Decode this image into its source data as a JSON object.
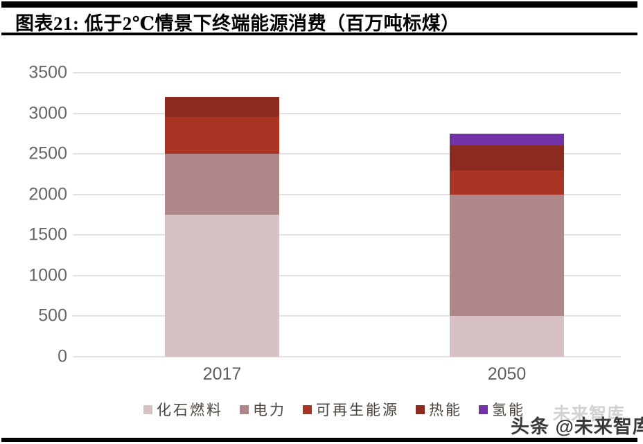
{
  "header": {
    "title": "图表21: 低于2℃情景下终端能源消费（百万吨标煤）"
  },
  "chart_data": {
    "type": "bar",
    "stacked": true,
    "title": "低于2℃情景下终端能源消费（百万吨标煤）",
    "categories": [
      "2017",
      "2050"
    ],
    "series": [
      {
        "name": "化石燃料",
        "color": "#d8c1c3",
        "values": [
          1750,
          500
        ]
      },
      {
        "name": "电力",
        "color": "#ae878a",
        "values": [
          750,
          1500
        ]
      },
      {
        "name": "可再生能源",
        "color": "#a93423",
        "values": [
          450,
          300
        ]
      },
      {
        "name": "热能",
        "color": "#8b2a1e",
        "values": [
          250,
          300
        ]
      },
      {
        "name": "氢能",
        "color": "#7232a6",
        "values": [
          0,
          150
        ]
      }
    ],
    "totals": [
      3200,
      2750
    ],
    "xlabel": "",
    "ylabel": "",
    "ylim": [
      0,
      3500
    ],
    "yticks": [
      0,
      500,
      1000,
      1500,
      2000,
      2500,
      3000,
      3500
    ],
    "grid": true,
    "legend_position": "bottom"
  },
  "watermark": {
    "ghost": "未来智库",
    "main": "头条 @未来智库"
  }
}
